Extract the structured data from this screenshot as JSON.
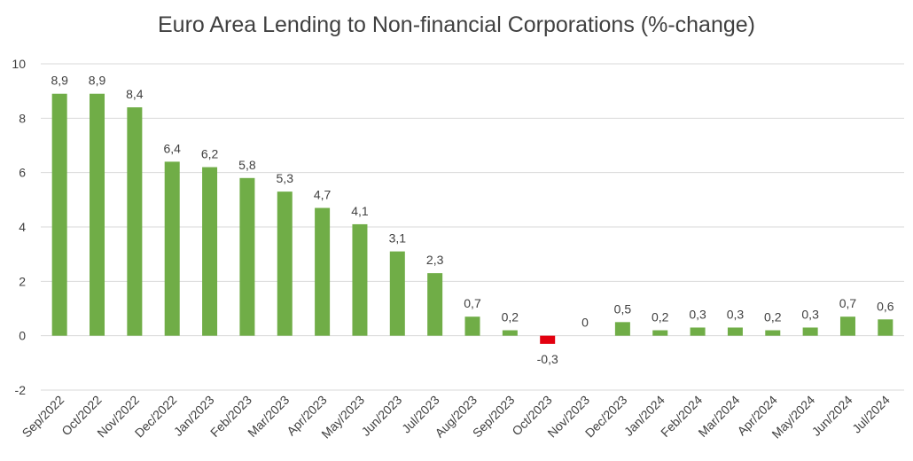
{
  "chart_data": {
    "type": "bar",
    "title": "Euro Area Lending to Non-financial Corporations (%-change)",
    "xlabel": "",
    "ylabel": "",
    "ylim": [
      -2,
      10
    ],
    "yticks": [
      -2,
      0,
      2,
      4,
      6,
      8,
      10
    ],
    "grid": true,
    "legend": "none",
    "positive_color": "#70AD47",
    "negative_color": "#E3000F",
    "categories": [
      "Sep/2022",
      "Oct/2022",
      "Nov/2022",
      "Dec/2022",
      "Jan/2023",
      "Feb/2023",
      "Mar/2023",
      "Apr/2023",
      "May/2023",
      "Jun/2023",
      "Jul/2023",
      "Aug/2023",
      "Sep/2023",
      "Oct/2023",
      "Nov/2023",
      "Dec/2023",
      "Jan/2024",
      "Feb/2024",
      "Mar/2024",
      "Apr/2024",
      "May/2024",
      "Jun/2024",
      "Jul/2024"
    ],
    "values": [
      8.9,
      8.9,
      8.4,
      6.4,
      6.2,
      5.8,
      5.3,
      4.7,
      4.1,
      3.1,
      2.3,
      0.7,
      0.2,
      -0.3,
      0,
      0.5,
      0.2,
      0.3,
      0.3,
      0.2,
      0.3,
      0.7,
      0.6
    ],
    "data_labels": [
      "8,9",
      "8,9",
      "8,4",
      "6,4",
      "6,2",
      "5,8",
      "5,3",
      "4,7",
      "4,1",
      "3,1",
      "2,3",
      "0,7",
      "0,2",
      "-0,3",
      "0",
      "0,5",
      "0,2",
      "0,3",
      "0,3",
      "0,2",
      "0,3",
      "0,7",
      "0,6"
    ]
  }
}
